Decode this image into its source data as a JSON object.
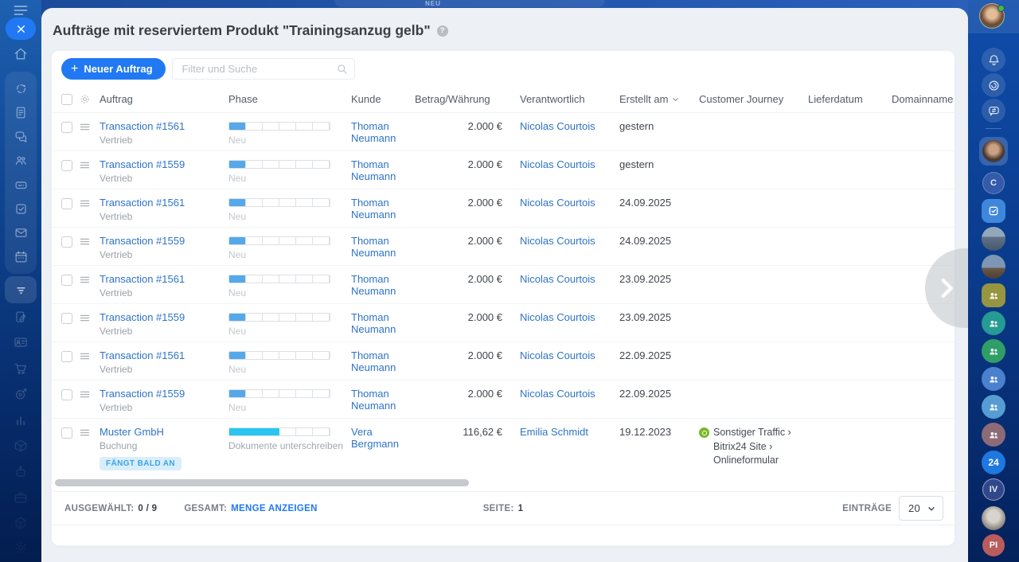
{
  "title": "Aufträge mit reserviertem Produkt \"Trainingsanzug gelb\"",
  "top": {
    "neu_badge": "NEU"
  },
  "toolbar": {
    "new_button_label": "Neuer Auftrag",
    "search_placeholder": "Filter und Suche"
  },
  "table": {
    "columns": {
      "auftrag": "Auftrag",
      "phase": "Phase",
      "kunde": "Kunde",
      "betrag": "Betrag/Währung",
      "verantwortlich": "Verantwortlich",
      "erstellt": "Erstellt am",
      "journey": "Customer Journey",
      "lieferdatum": "Lieferdatum",
      "domainname": "Domainname"
    },
    "rows": [
      {
        "name": "Transaction #1561",
        "pipeline": "Vertrieb",
        "phase_label": "Neu",
        "phase_pct": 16,
        "phase_color": "#55a8ea",
        "kunde": "Thoman Neumann",
        "betrag": "2.000 €",
        "verantwortlich": "Nicolas Courtois",
        "erstellt": "gestern"
      },
      {
        "name": "Transaction #1559",
        "pipeline": "Vertrieb",
        "phase_label": "Neu",
        "phase_pct": 16,
        "phase_color": "#55a8ea",
        "kunde": "Thoman Neumann",
        "betrag": "2.000 €",
        "verantwortlich": "Nicolas Courtois",
        "erstellt": "gestern"
      },
      {
        "name": "Transaction #1561",
        "pipeline": "Vertrieb",
        "phase_label": "Neu",
        "phase_pct": 16,
        "phase_color": "#55a8ea",
        "kunde": "Thoman Neumann",
        "betrag": "2.000 €",
        "verantwortlich": "Nicolas Courtois",
        "erstellt": "24.09.2025"
      },
      {
        "name": "Transaction #1559",
        "pipeline": "Vertrieb",
        "phase_label": "Neu",
        "phase_pct": 16,
        "phase_color": "#55a8ea",
        "kunde": "Thoman Neumann",
        "betrag": "2.000 €",
        "verantwortlich": "Nicolas Courtois",
        "erstellt": "24.09.2025"
      },
      {
        "name": "Transaction #1561",
        "pipeline": "Vertrieb",
        "phase_label": "Neu",
        "phase_pct": 16,
        "phase_color": "#55a8ea",
        "kunde": "Thoman Neumann",
        "betrag": "2.000 €",
        "verantwortlich": "Nicolas Courtois",
        "erstellt": "23.09.2025"
      },
      {
        "name": "Transaction #1559",
        "pipeline": "Vertrieb",
        "phase_label": "Neu",
        "phase_pct": 16,
        "phase_color": "#55a8ea",
        "kunde": "Thoman Neumann",
        "betrag": "2.000 €",
        "verantwortlich": "Nicolas Courtois",
        "erstellt": "23.09.2025"
      },
      {
        "name": "Transaction #1561",
        "pipeline": "Vertrieb",
        "phase_label": "Neu",
        "phase_pct": 16,
        "phase_color": "#55a8ea",
        "kunde": "Thoman Neumann",
        "betrag": "2.000 €",
        "verantwortlich": "Nicolas Courtois",
        "erstellt": "22.09.2025"
      },
      {
        "name": "Transaction #1559",
        "pipeline": "Vertrieb",
        "phase_label": "Neu",
        "phase_pct": 16,
        "phase_color": "#55a8ea",
        "kunde": "Thoman Neumann",
        "betrag": "2.000 €",
        "verantwortlich": "Nicolas Courtois",
        "erstellt": "22.09.2025"
      },
      {
        "name": "Muster GmbH",
        "pipeline": "Buchung",
        "badge": "FÄNGT BALD AN",
        "phase_label": "Dokumente unterschreiben",
        "phase_pct": 50,
        "phase_color": "#29c6f2",
        "kunde": "Vera Bergmann",
        "betrag": "116,62 €",
        "verantwortlich": "Emilia Schmidt",
        "erstellt": "19.12.2023",
        "journey": "Sonstiger Traffic › Bitrix24 Site › Onlineformular",
        "tall": true
      }
    ]
  },
  "footer": {
    "selected_label": "AUSGEWÄHLT:",
    "selected_value": "0 / 9",
    "total_label": "GESAMT:",
    "total_link": "MENGE ANZEIGEN",
    "page_label": "SEITE:",
    "page_value": "1",
    "entries_label": "EINTRÄGE",
    "entries_value": "20"
  },
  "right_sidebar": {
    "badge_c": "C",
    "badge_24": "24",
    "badge_iv": "IV",
    "badge_pi": "PI"
  },
  "left_sidebar_icons": [
    "menu",
    "close",
    "home",
    "automation",
    "news-feed",
    "messenger",
    "employees",
    "drive",
    "tasks",
    "mail",
    "calendar",
    "crm-funnel",
    "e-signature",
    "contact-center",
    "shopping-cart",
    "marketing",
    "analytics",
    "inventory",
    "copilot-robot",
    "briefcase",
    "sites-cube",
    "settings-gear"
  ],
  "right_sidebar_icons": [
    "profile-avatar",
    "notifications-bell",
    "copilot",
    "messenger",
    "active-chat-avatar",
    "chat-c",
    "tasks-chat",
    "photo-chat-1",
    "photo-chat-2",
    "group-chat-olive",
    "group-chat-teal",
    "group-chat-green",
    "group-chat-blue",
    "group-chat-lightblue",
    "group-chat-mauve",
    "bitrix24-badge",
    "iv-chat",
    "cat-avatar",
    "pi-chat"
  ],
  "colors": {
    "accent": "#2079f3",
    "link": "#2e74c6",
    "phase_blue": "#55a8ea",
    "phase_cyan": "#29c6f2",
    "journey_green": "#7ab829",
    "badge_bg": "#d9eefb",
    "badge_text": "#3aa4e9"
  }
}
